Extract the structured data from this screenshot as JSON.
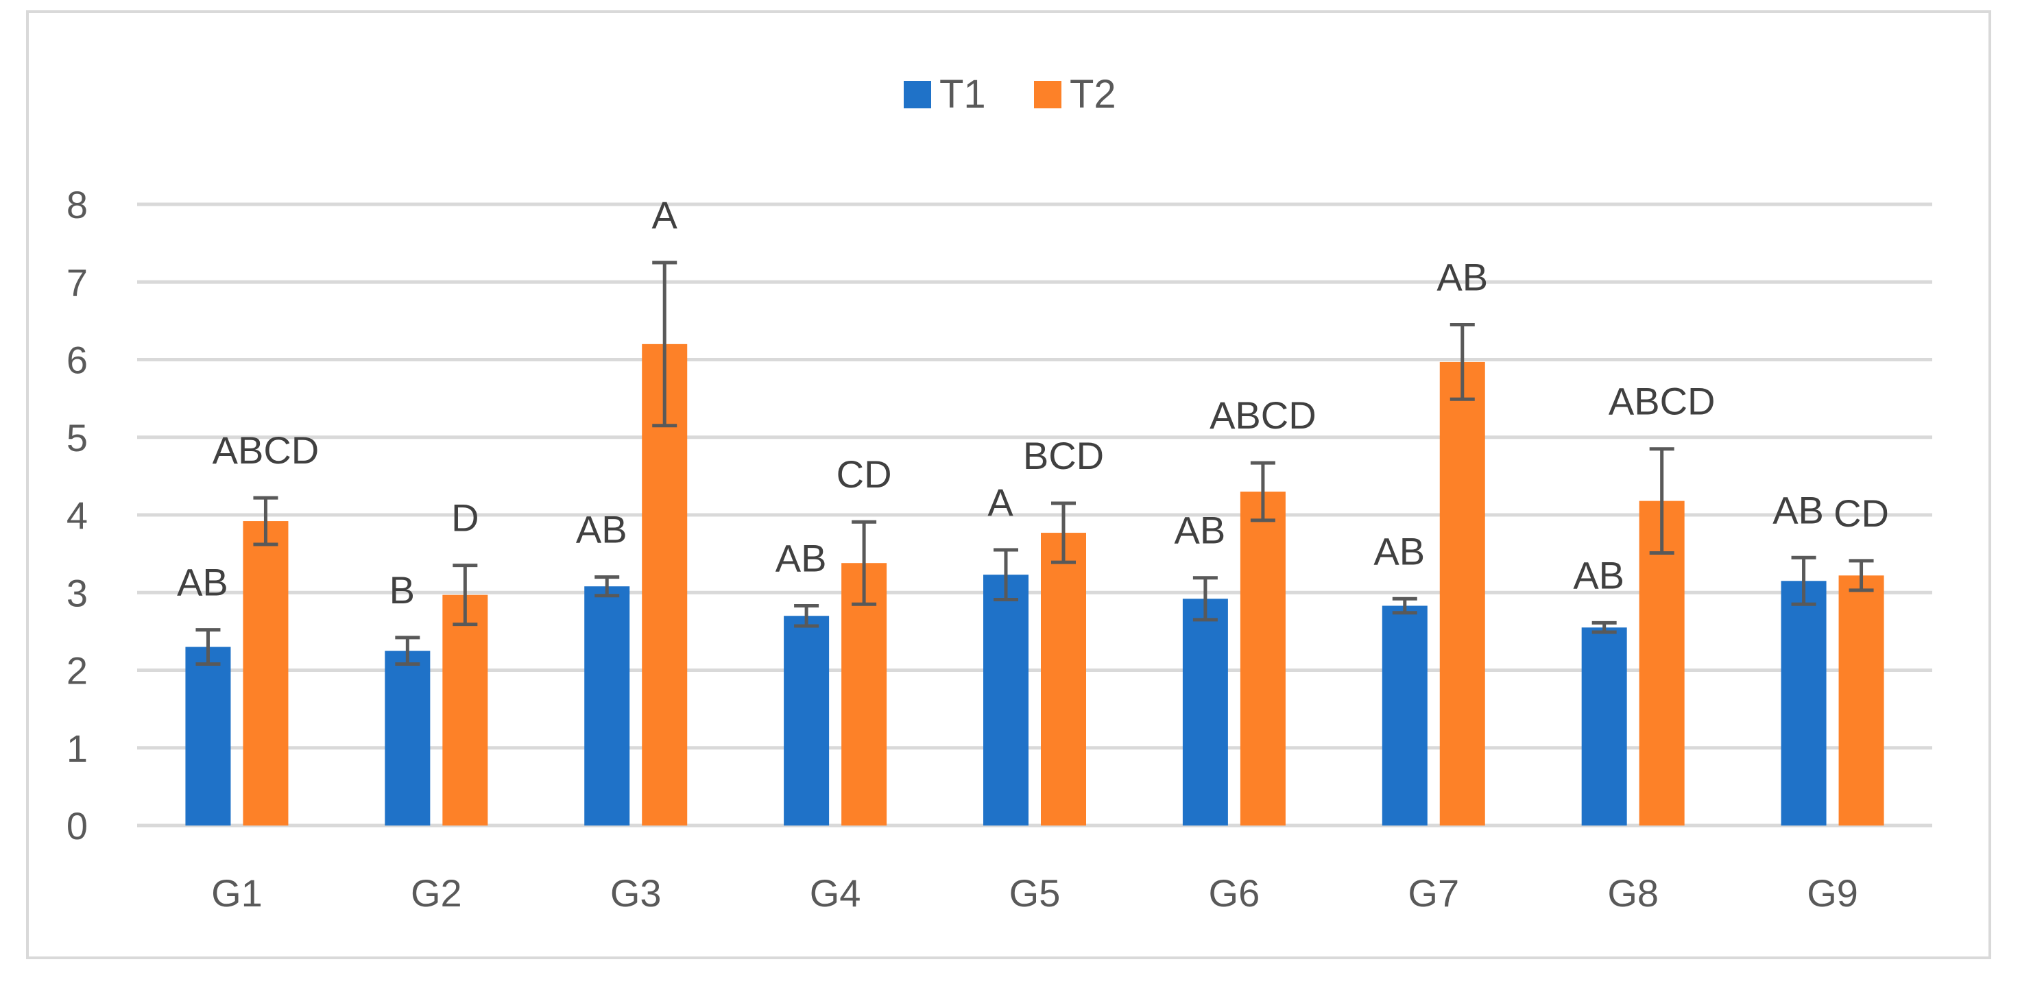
{
  "chart_data": {
    "type": "bar",
    "title": "",
    "xlabel": "",
    "ylabel": "",
    "categories": [
      "G1",
      "G2",
      "G3",
      "G4",
      "G5",
      "G6",
      "G7",
      "G8",
      "G9"
    ],
    "ylim": [
      0,
      8
    ],
    "yticks": [
      "0",
      "1",
      "2",
      "3",
      "4",
      "5",
      "6",
      "7",
      "8"
    ],
    "grid": true,
    "legend_position": "top-center",
    "series": [
      {
        "name": "T1",
        "color": "#1f72c8",
        "values": [
          2.3,
          2.25,
          3.08,
          2.7,
          3.23,
          2.92,
          2.83,
          2.55,
          3.15
        ],
        "errors": [
          0.22,
          0.17,
          0.12,
          0.13,
          0.32,
          0.27,
          0.09,
          0.06,
          0.3
        ],
        "letters": [
          "AB",
          "B",
          "AB",
          "AB",
          "A",
          "AB",
          "AB",
          "AB",
          "AB"
        ]
      },
      {
        "name": "T2",
        "color": "#fd8128",
        "values": [
          3.92,
          2.97,
          6.2,
          3.38,
          3.77,
          4.3,
          5.97,
          4.18,
          3.22
        ],
        "errors": [
          0.3,
          0.38,
          1.05,
          0.53,
          0.38,
          0.37,
          0.48,
          0.67,
          0.19
        ],
        "letters": [
          "ABCD",
          "D",
          "A",
          "CD",
          "BCD",
          "ABCD",
          "AB",
          "ABCD",
          "CD"
        ]
      }
    ],
    "error_bar_color": "#595959"
  }
}
